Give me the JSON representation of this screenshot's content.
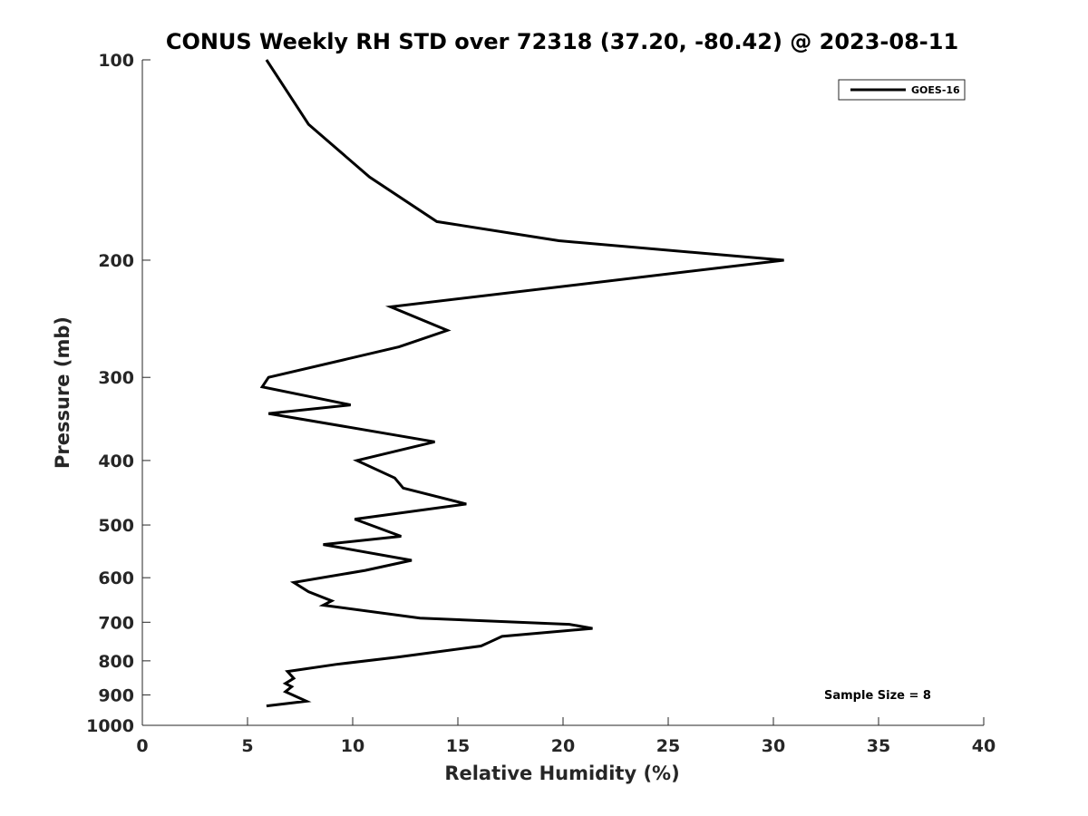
{
  "chart_data": {
    "type": "line",
    "title": "CONUS Weekly RH STD over 72318 (37.20, -80.42) @ 2023-08-11",
    "xlabel": "Relative Humidity (%)",
    "ylabel": "Pressure (mb)",
    "xlim": [
      0,
      40
    ],
    "ylim": [
      100,
      1000
    ],
    "yscale": "log",
    "y_reversed": true,
    "xticks": [
      "0",
      "5",
      "10",
      "15",
      "20",
      "25",
      "30",
      "35",
      "40"
    ],
    "yticks": [
      "100",
      "200",
      "300",
      "400",
      "500",
      "600",
      "700",
      "800",
      "900",
      "1000"
    ],
    "grid": false,
    "legend_position": "top-right",
    "annotation": "Sample Size = 8",
    "series": [
      {
        "name": "GOES-16",
        "color": "#000000",
        "x": [
          5.9,
          7.9,
          10.8,
          14.0,
          19.8,
          30.5,
          11.8,
          14.5,
          12.2,
          6.0,
          5.7,
          9.9,
          6.0,
          13.9,
          10.2,
          12.0,
          12.4,
          15.4,
          10.1,
          12.3,
          8.6,
          12.8,
          10.6,
          7.2,
          7.9,
          9.0,
          8.6,
          13.2,
          20.3,
          21.4,
          17.1,
          16.5,
          16.1,
          12.1,
          9.2,
          6.9,
          7.2,
          6.8,
          7.1,
          6.8,
          7.8,
          5.9
        ],
        "y": [
          100,
          125,
          150,
          175,
          187,
          200,
          235,
          255,
          270,
          300,
          310,
          330,
          340,
          375,
          400,
          425,
          440,
          465,
          490,
          520,
          535,
          565,
          585,
          610,
          630,
          650,
          660,
          690,
          705,
          715,
          735,
          750,
          760,
          790,
          810,
          830,
          850,
          865,
          875,
          890,
          920,
          935
        ]
      }
    ]
  }
}
